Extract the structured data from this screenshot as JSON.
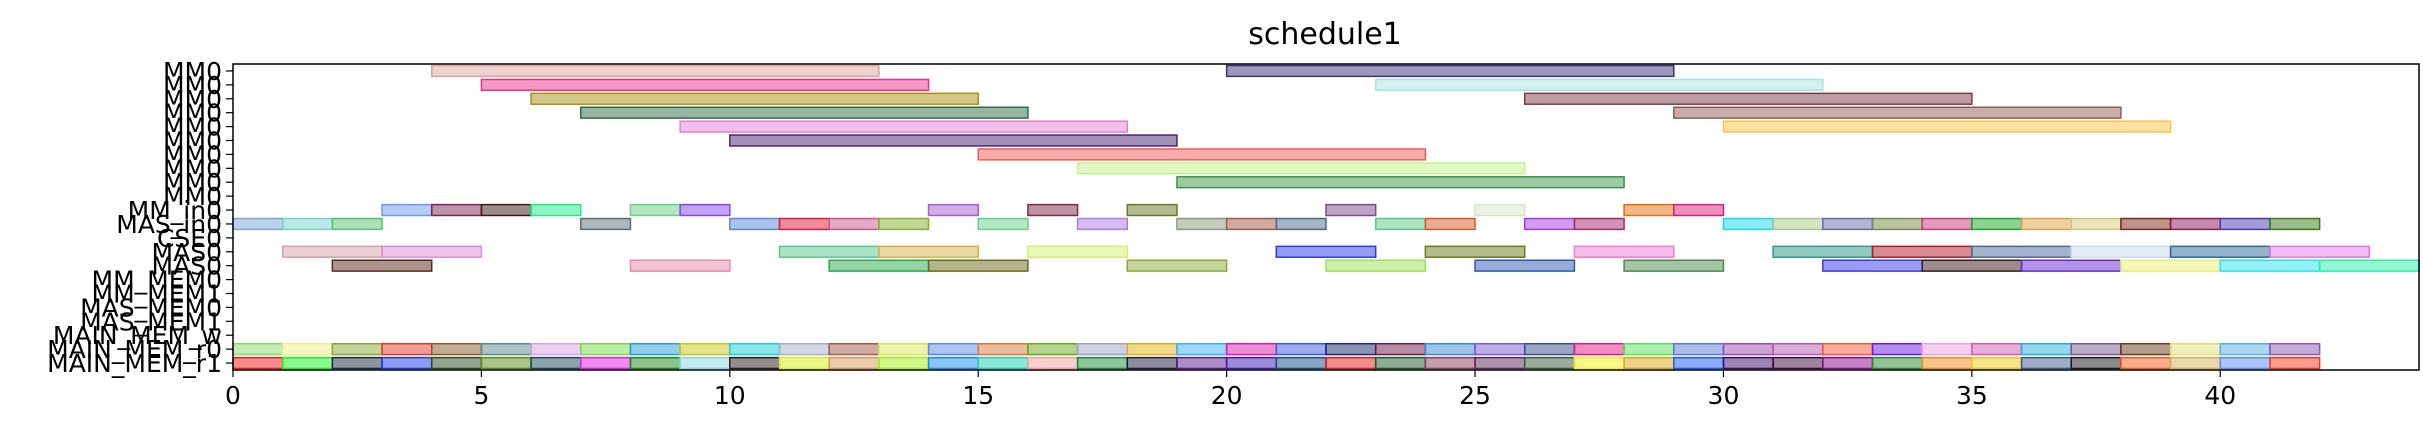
{
  "chart_data": {
    "type": "gantt",
    "title": "schedule1",
    "xlabel": "",
    "ylabel": "",
    "xlim": [
      0,
      44
    ],
    "x_ticks": [
      0,
      5,
      10,
      15,
      20,
      25,
      30,
      35,
      40
    ],
    "grid": false,
    "rows": [
      "MM0",
      "MM0",
      "MM0",
      "MM0",
      "MM0",
      "MM0",
      "MM0",
      "MM0",
      "MM0",
      "MM0",
      "MM_in0",
      "MAS_in0",
      "CSE0",
      "MAS0",
      "MAS0",
      "MM_MEM0",
      "MM_MEM1",
      "MAS_MEM0",
      "MAS_MEM1",
      "MAIN_MEM_w",
      "MAIN_MEM_r0",
      "MAIN_MEM_r1"
    ],
    "tasks": [
      {
        "row": 0,
        "start": 4,
        "end": 13,
        "color": "#d9a39a"
      },
      {
        "row": 0,
        "start": 20,
        "end": 29,
        "color": "#3e2f7a"
      },
      {
        "row": 1,
        "start": 5,
        "end": 14,
        "color": "#e8348a"
      },
      {
        "row": 1,
        "start": 23,
        "end": 32,
        "color": "#a6e4df"
      },
      {
        "row": 2,
        "start": 6,
        "end": 15,
        "color": "#a89212"
      },
      {
        "row": 2,
        "start": 26,
        "end": 35,
        "color": "#7d3c48"
      },
      {
        "row": 3,
        "start": 7,
        "end": 16,
        "color": "#2f6b48"
      },
      {
        "row": 3,
        "start": 29,
        "end": 38,
        "color": "#915b58"
      },
      {
        "row": 4,
        "start": 9,
        "end": 18,
        "color": "#e67fd8"
      },
      {
        "row": 4,
        "start": 30,
        "end": 39,
        "color": "#f8c545"
      },
      {
        "row": 5,
        "start": 10,
        "end": 19,
        "color": "#4a2470"
      },
      {
        "row": 6,
        "start": 15,
        "end": 24,
        "color": "#f25a5a"
      },
      {
        "row": 7,
        "start": 17,
        "end": 26,
        "color": "#c4f58c"
      },
      {
        "row": 8,
        "start": 19,
        "end": 28,
        "color": "#3d9448"
      },
      {
        "row": 10,
        "start": 3,
        "end": 4,
        "color": "#6f9ae8"
      },
      {
        "row": 10,
        "start": 4,
        "end": 5,
        "color": "#7a2652"
      },
      {
        "row": 10,
        "start": 5,
        "end": 6,
        "color": "#3a1a1a"
      },
      {
        "row": 10,
        "start": 6,
        "end": 7,
        "color": "#22e888"
      },
      {
        "row": 10,
        "start": 8,
        "end": 9,
        "color": "#6acd8a"
      },
      {
        "row": 10,
        "start": 9,
        "end": 10,
        "color": "#8a46e8"
      },
      {
        "row": 10,
        "start": 14,
        "end": 15,
        "color": "#a65ed0"
      },
      {
        "row": 10,
        "start": 16,
        "end": 17,
        "color": "#7e2a4a"
      },
      {
        "row": 10,
        "start": 18,
        "end": 19,
        "color": "#6a7a2a"
      },
      {
        "row": 10,
        "start": 22,
        "end": 23,
        "color": "#7e4a8a"
      },
      {
        "row": 10,
        "start": 25,
        "end": 26,
        "color": "#d6e8c8"
      },
      {
        "row": 10,
        "start": 28,
        "end": 29,
        "color": "#e07010"
      },
      {
        "row": 10,
        "start": 29,
        "end": 30,
        "color": "#d8207a"
      },
      {
        "row": 11,
        "start": 0,
        "end": 1,
        "color": "#7aa6d8"
      },
      {
        "row": 11,
        "start": 1,
        "end": 2,
        "color": "#7ad0d0"
      },
      {
        "row": 11,
        "start": 2,
        "end": 3,
        "color": "#5ac070"
      },
      {
        "row": 11,
        "start": 7,
        "end": 8,
        "color": "#5a6e7a"
      },
      {
        "row": 11,
        "start": 10,
        "end": 11,
        "color": "#5a8ad8"
      },
      {
        "row": 11,
        "start": 11,
        "end": 12,
        "color": "#e01a3a"
      },
      {
        "row": 11,
        "start": 12,
        "end": 13,
        "color": "#c85a8a"
      },
      {
        "row": 11,
        "start": 13,
        "end": 14,
        "color": "#8aae2a"
      },
      {
        "row": 11,
        "start": 15,
        "end": 16,
        "color": "#6ad08a"
      },
      {
        "row": 11,
        "start": 17,
        "end": 18,
        "color": "#b07ae0"
      },
      {
        "row": 11,
        "start": 19,
        "end": 20,
        "color": "#8a9a7a"
      },
      {
        "row": 11,
        "start": 20,
        "end": 21,
        "color": "#a0584a"
      },
      {
        "row": 11,
        "start": 21,
        "end": 22,
        "color": "#4a6a8a"
      },
      {
        "row": 11,
        "start": 23,
        "end": 24,
        "color": "#5ac88a"
      },
      {
        "row": 11,
        "start": 24,
        "end": 25,
        "color": "#d85a2a"
      },
      {
        "row": 11,
        "start": 26,
        "end": 27,
        "color": "#a83ae0"
      },
      {
        "row": 11,
        "start": 27,
        "end": 28,
        "color": "#a02a6a"
      },
      {
        "row": 11,
        "start": 30,
        "end": 31,
        "color": "#1ad8e8"
      },
      {
        "row": 11,
        "start": 31,
        "end": 32,
        "color": "#a8c88a"
      },
      {
        "row": 11,
        "start": 32,
        "end": 33,
        "color": "#6a6aa8"
      },
      {
        "row": 11,
        "start": 33,
        "end": 34,
        "color": "#7a8a4a"
      },
      {
        "row": 11,
        "start": 34,
        "end": 35,
        "color": "#c8387a"
      },
      {
        "row": 11,
        "start": 35,
        "end": 36,
        "color": "#1aa82a"
      },
      {
        "row": 11,
        "start": 36,
        "end": 37,
        "color": "#e0a04a"
      },
      {
        "row": 11,
        "start": 37,
        "end": 38,
        "color": "#d8c87a"
      },
      {
        "row": 11,
        "start": 38,
        "end": 39,
        "color": "#7a2a1a"
      },
      {
        "row": 11,
        "start": 39,
        "end": 40,
        "color": "#8a1a5a"
      },
      {
        "row": 11,
        "start": 40,
        "end": 41,
        "color": "#4a3ab0"
      },
      {
        "row": 11,
        "start": 41,
        "end": 42,
        "color": "#3a7a1a"
      },
      {
        "row": 13,
        "start": 1,
        "end": 3,
        "color": "#d8a0a8"
      },
      {
        "row": 13,
        "start": 3,
        "end": 5,
        "color": "#e08ae0"
      },
      {
        "row": 13,
        "start": 11,
        "end": 13,
        "color": "#5ac890"
      },
      {
        "row": 13,
        "start": 13,
        "end": 15,
        "color": "#d8b04a"
      },
      {
        "row": 13,
        "start": 16,
        "end": 18,
        "color": "#d4f070"
      },
      {
        "row": 13,
        "start": 21,
        "end": 23,
        "color": "#2a3ae8"
      },
      {
        "row": 13,
        "start": 24,
        "end": 26,
        "color": "#6a7a1a"
      },
      {
        "row": 13,
        "start": 27,
        "end": 29,
        "color": "#f07ad8"
      },
      {
        "row": 13,
        "start": 31,
        "end": 33,
        "color": "#2a9a8a"
      },
      {
        "row": 13,
        "start": 33,
        "end": 35,
        "color": "#b01a2a"
      },
      {
        "row": 13,
        "start": 35,
        "end": 37,
        "color": "#4a6a9a"
      },
      {
        "row": 13,
        "start": 37,
        "end": 39,
        "color": "#c8daf0"
      },
      {
        "row": 13,
        "start": 39,
        "end": 41,
        "color": "#2a6a9a"
      },
      {
        "row": 13,
        "start": 41,
        "end": 43,
        "color": "#e07ae8"
      },
      {
        "row": 14,
        "start": 2,
        "end": 4,
        "color": "#5a2a1a"
      },
      {
        "row": 14,
        "start": 8,
        "end": 10,
        "color": "#e88aaa"
      },
      {
        "row": 14,
        "start": 12,
        "end": 14,
        "color": "#2aa84a"
      },
      {
        "row": 14,
        "start": 14,
        "end": 16,
        "color": "#6a6a1a"
      },
      {
        "row": 14,
        "start": 18,
        "end": 20,
        "color": "#8aa83a"
      },
      {
        "row": 14,
        "start": 22,
        "end": 24,
        "color": "#9ae05a"
      },
      {
        "row": 14,
        "start": 25,
        "end": 27,
        "color": "#2a5ab0"
      },
      {
        "row": 14,
        "start": 28,
        "end": 30,
        "color": "#4a8a4a"
      },
      {
        "row": 14,
        "start": 32,
        "end": 34,
        "color": "#3a3ae8"
      },
      {
        "row": 14,
        "start": 34,
        "end": 36,
        "color": "#3a1a1a"
      },
      {
        "row": 14,
        "start": 36,
        "end": 38,
        "color": "#6a2ad0"
      },
      {
        "row": 14,
        "start": 38,
        "end": 40,
        "color": "#e8f07a"
      },
      {
        "row": 14,
        "start": 40,
        "end": 42,
        "color": "#2ae0f0"
      },
      {
        "row": 14,
        "start": 42,
        "end": 44,
        "color": "#2af0a8"
      },
      {
        "row": 20,
        "start": 0,
        "end": 1,
        "color": "#8ad86a"
      },
      {
        "row": 20,
        "start": 1,
        "end": 2,
        "color": "#f0f08a"
      },
      {
        "row": 20,
        "start": 2,
        "end": 3,
        "color": "#8aa83a"
      },
      {
        "row": 20,
        "start": 3,
        "end": 4,
        "color": "#e03a2a"
      },
      {
        "row": 20,
        "start": 4,
        "end": 5,
        "color": "#8a5a2a"
      },
      {
        "row": 20,
        "start": 5,
        "end": 6,
        "color": "#5a8a8a"
      },
      {
        "row": 20,
        "start": 6,
        "end": 7,
        "color": "#d8a0e0"
      },
      {
        "row": 20,
        "start": 7,
        "end": 8,
        "color": "#7ad84a"
      },
      {
        "row": 20,
        "start": 8,
        "end": 9,
        "color": "#2a9ad8"
      },
      {
        "row": 20,
        "start": 9,
        "end": 10,
        "color": "#c8c81a"
      },
      {
        "row": 20,
        "start": 10,
        "end": 11,
        "color": "#1ad0d8"
      },
      {
        "row": 20,
        "start": 11,
        "end": 12,
        "color": "#a8b0c8"
      },
      {
        "row": 20,
        "start": 12,
        "end": 13,
        "color": "#a05a4a"
      },
      {
        "row": 20,
        "start": 13,
        "end": 14,
        "color": "#d8e85a"
      },
      {
        "row": 20,
        "start": 14,
        "end": 15,
        "color": "#5a8ae0"
      },
      {
        "row": 20,
        "start": 15,
        "end": 16,
        "color": "#d87a3a"
      },
      {
        "row": 20,
        "start": 16,
        "end": 17,
        "color": "#6aa81a"
      },
      {
        "row": 20,
        "start": 17,
        "end": 18,
        "color": "#a0a0c8"
      },
      {
        "row": 20,
        "start": 18,
        "end": 19,
        "color": "#e0b01a"
      },
      {
        "row": 20,
        "start": 19,
        "end": 20,
        "color": "#3ab0f0"
      },
      {
        "row": 20,
        "start": 20,
        "end": 21,
        "color": "#d81ab0"
      },
      {
        "row": 20,
        "start": 21,
        "end": 22,
        "color": "#3a5ae0"
      },
      {
        "row": 20,
        "start": 22,
        "end": 23,
        "color": "#1a2a6a"
      },
      {
        "row": 20,
        "start": 23,
        "end": 24,
        "color": "#6a1a4a"
      },
      {
        "row": 20,
        "start": 24,
        "end": 25,
        "color": "#3a8ad0"
      },
      {
        "row": 20,
        "start": 25,
        "end": 26,
        "color": "#7a5ad0"
      },
      {
        "row": 20,
        "start": 26,
        "end": 27,
        "color": "#3a4a8a"
      },
      {
        "row": 20,
        "start": 27,
        "end": 28,
        "color": "#e01a8a"
      },
      {
        "row": 20,
        "start": 28,
        "end": 29,
        "color": "#5ae05a"
      },
      {
        "row": 20,
        "start": 29,
        "end": 30,
        "color": "#5a7ad8"
      },
      {
        "row": 20,
        "start": 30,
        "end": 31,
        "color": "#9a4ab0"
      },
      {
        "row": 20,
        "start": 31,
        "end": 32,
        "color": "#b05ab0"
      },
      {
        "row": 20,
        "start": 32,
        "end": 33,
        "color": "#f05a3a"
      },
      {
        "row": 20,
        "start": 33,
        "end": 34,
        "color": "#6a1ae0"
      },
      {
        "row": 20,
        "start": 34,
        "end": 35,
        "color": "#f0a0e0"
      },
      {
        "row": 20,
        "start": 35,
        "end": 36,
        "color": "#d05ab0"
      },
      {
        "row": 20,
        "start": 36,
        "end": 37,
        "color": "#2ab0d8"
      },
      {
        "row": 20,
        "start": 37,
        "end": 38,
        "color": "#7a5a8a"
      },
      {
        "row": 20,
        "start": 38,
        "end": 39,
        "color": "#6a3a1a"
      },
      {
        "row": 20,
        "start": 39,
        "end": 40,
        "color": "#e0e07a"
      },
      {
        "row": 20,
        "start": 40,
        "end": 41,
        "color": "#5ab0e0"
      },
      {
        "row": 20,
        "start": 41,
        "end": 42,
        "color": "#8a5ab0"
      },
      {
        "row": 21,
        "start": 0,
        "end": 1,
        "color": "#f01a1a"
      },
      {
        "row": 21,
        "start": 1,
        "end": 2,
        "color": "#1af01a"
      },
      {
        "row": 21,
        "start": 2,
        "end": 3,
        "color": "#1a2a3a"
      },
      {
        "row": 21,
        "start": 3,
        "end": 4,
        "color": "#1a3ae0"
      },
      {
        "row": 21,
        "start": 4,
        "end": 5,
        "color": "#2a4a1a"
      },
      {
        "row": 21,
        "start": 5,
        "end": 6,
        "color": "#5a8a1a"
      },
      {
        "row": 21,
        "start": 6,
        "end": 7,
        "color": "#1a4a5a"
      },
      {
        "row": 21,
        "start": 7,
        "end": 8,
        "color": "#e01ae0"
      },
      {
        "row": 21,
        "start": 8,
        "end": 9,
        "color": "#1a8a1a"
      },
      {
        "row": 21,
        "start": 9,
        "end": 10,
        "color": "#8ad8e0"
      },
      {
        "row": 21,
        "start": 10,
        "end": 11,
        "color": "#2a1a1a"
      },
      {
        "row": 21,
        "start": 11,
        "end": 12,
        "color": "#d8f01a"
      },
      {
        "row": 21,
        "start": 12,
        "end": 13,
        "color": "#d89a5a"
      },
      {
        "row": 21,
        "start": 13,
        "end": 14,
        "color": "#a0f01a"
      },
      {
        "row": 21,
        "start": 14,
        "end": 15,
        "color": "#1a8af0"
      },
      {
        "row": 21,
        "start": 15,
        "end": 16,
        "color": "#1ad0b0"
      },
      {
        "row": 21,
        "start": 16,
        "end": 17,
        "color": "#f0a0a0"
      },
      {
        "row": 21,
        "start": 17,
        "end": 18,
        "color": "#1a8a3a"
      },
      {
        "row": 21,
        "start": 18,
        "end": 19,
        "color": "#1a1a3a"
      },
      {
        "row": 21,
        "start": 19,
        "end": 20,
        "color": "#5a1a8a"
      },
      {
        "row": 21,
        "start": 20,
        "end": 21,
        "color": "#3a1ab0"
      },
      {
        "row": 21,
        "start": 21,
        "end": 22,
        "color": "#1a4a8a"
      },
      {
        "row": 21,
        "start": 22,
        "end": 23,
        "color": "#e01a1a"
      },
      {
        "row": 21,
        "start": 23,
        "end": 24,
        "color": "#1a5a2a"
      },
      {
        "row": 21,
        "start": 24,
        "end": 25,
        "color": "#8a3a5a"
      },
      {
        "row": 21,
        "start": 25,
        "end": 26,
        "color": "#5a2a5a"
      },
      {
        "row": 21,
        "start": 26,
        "end": 27,
        "color": "#3a5a3a"
      },
      {
        "row": 21,
        "start": 27,
        "end": 28,
        "color": "#f0f01a"
      },
      {
        "row": 21,
        "start": 28,
        "end": 29,
        "color": "#d8a81a"
      },
      {
        "row": 21,
        "start": 29,
        "end": 30,
        "color": "#1a5af0"
      },
      {
        "row": 21,
        "start": 30,
        "end": 31,
        "color": "#3a0a6a"
      },
      {
        "row": 21,
        "start": 31,
        "end": 32,
        "color": "#3a0a3a"
      },
      {
        "row": 21,
        "start": 32,
        "end": 33,
        "color": "#8a0a8a"
      },
      {
        "row": 21,
        "start": 33,
        "end": 34,
        "color": "#2a8a2a"
      },
      {
        "row": 21,
        "start": 34,
        "end": 35,
        "color": "#f08a1a"
      },
      {
        "row": 21,
        "start": 35,
        "end": 36,
        "color": "#f0c81a"
      },
      {
        "row": 21,
        "start": 36,
        "end": 37,
        "color": "#3a5a8a"
      },
      {
        "row": 21,
        "start": 37,
        "end": 38,
        "color": "#1a1a1a"
      },
      {
        "row": 21,
        "start": 38,
        "end": 39,
        "color": "#f05a1a"
      },
      {
        "row": 21,
        "start": 39,
        "end": 40,
        "color": "#d8b05a"
      },
      {
        "row": 21,
        "start": 40,
        "end": 41,
        "color": "#5a8af0"
      },
      {
        "row": 21,
        "start": 41,
        "end": 42,
        "color": "#f03a1a"
      }
    ]
  }
}
